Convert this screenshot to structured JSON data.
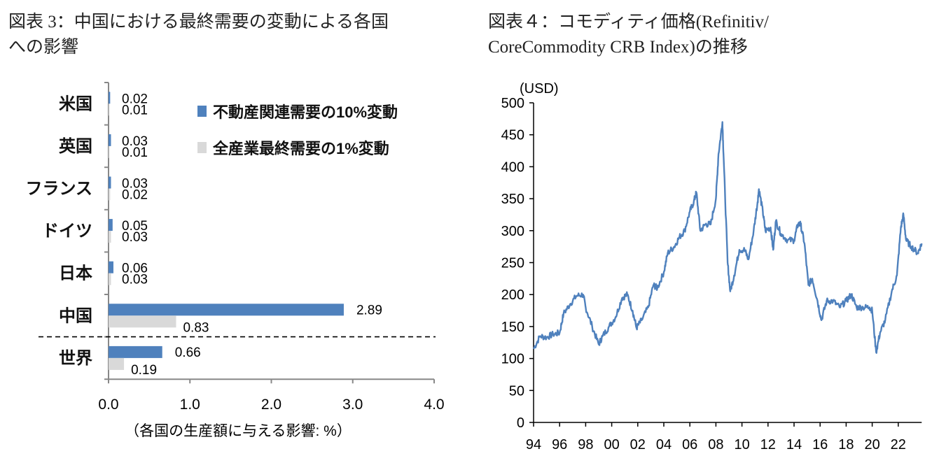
{
  "chart_data": [
    {
      "type": "bar",
      "orientation": "horizontal",
      "title_line1": "図表 3：中国における最終需要の変動による各国",
      "title_line2": "への影響",
      "categories": [
        "米国",
        "英国",
        "フランス",
        "ドイツ",
        "日本",
        "中国",
        "世界"
      ],
      "series": [
        {
          "name": "不動産関連需要の10%変動",
          "color": "#4F81BD",
          "values": [
            0.02,
            0.03,
            0.03,
            0.05,
            0.06,
            2.89,
            0.66
          ]
        },
        {
          "name": "全産業最終需要の1%変動",
          "color": "#D9D9D9",
          "values": [
            0.01,
            0.01,
            0.02,
            0.03,
            0.03,
            0.83,
            0.19
          ]
        }
      ],
      "xlabel": "（各国の生産額に与える影響: %）",
      "xlim": [
        0,
        4
      ],
      "xticks": [
        "0.0",
        "1.0",
        "2.0",
        "3.0",
        "4.0"
      ],
      "legend": "top-right",
      "grid": false
    },
    {
      "type": "line",
      "title_line1": "図表４：コモディティ価格(Refinitiv/",
      "title_line2": "CoreCommodity CRB Index)の推移",
      "ylabel": "(USD)",
      "ylim": [
        0,
        500
      ],
      "yticks": [
        "0",
        "50",
        "100",
        "150",
        "200",
        "250",
        "300",
        "350",
        "400",
        "450",
        "500"
      ],
      "xlim": [
        1994,
        2023.8
      ],
      "xticks": [
        "94",
        "96",
        "98",
        "00",
        "02",
        "04",
        "06",
        "08",
        "10",
        "12",
        "14",
        "16",
        "18",
        "20",
        "22"
      ],
      "color": "#4F81BD",
      "grid": false,
      "series": [
        {
          "x": [
            1994.0,
            1994.5,
            1995.0,
            1995.5,
            1996.0,
            1996.3,
            1996.8,
            1997.3,
            1997.8,
            1998.0,
            1998.5,
            1999.0,
            1999.3,
            1999.8,
            2000.3,
            2000.8,
            2001.2,
            2001.6,
            2001.9,
            2002.3,
            2002.8,
            2003.2,
            2003.5,
            2004.0,
            2004.3,
            2004.8,
            2005.2,
            2005.6,
            2006.0,
            2006.3,
            2006.5,
            2006.8,
            2007.2,
            2007.6,
            2008.0,
            2008.2,
            2008.5,
            2008.6,
            2008.9,
            2009.1,
            2009.4,
            2009.8,
            2010.2,
            2010.5,
            2010.9,
            2011.2,
            2011.3,
            2011.6,
            2011.8,
            2012.2,
            2012.4,
            2012.6,
            2013.0,
            2013.5,
            2014.0,
            2014.3,
            2014.5,
            2014.8,
            2015.1,
            2015.4,
            2015.8,
            2016.1,
            2016.5,
            2017.0,
            2017.5,
            2018.0,
            2018.4,
            2018.8,
            2019.3,
            2019.8,
            2020.0,
            2020.3,
            2020.6,
            2021.0,
            2021.5,
            2021.9,
            2022.2,
            2022.4,
            2022.6,
            2023.0,
            2023.5,
            2023.8
          ],
          "y": [
            115,
            135,
            133,
            138,
            140,
            170,
            185,
            198,
            200,
            180,
            150,
            122,
            135,
            150,
            165,
            195,
            200,
            175,
            148,
            160,
            180,
            215,
            210,
            235,
            265,
            275,
            290,
            300,
            330,
            345,
            360,
            300,
            310,
            310,
            350,
            420,
            470,
            410,
            250,
            205,
            230,
            270,
            270,
            255,
            300,
            345,
            365,
            330,
            300,
            305,
            270,
            315,
            295,
            285,
            285,
            310,
            310,
            280,
            215,
            225,
            190,
            160,
            190,
            190,
            180,
            190,
            200,
            180,
            180,
            180,
            175,
            110,
            140,
            160,
            205,
            230,
            305,
            325,
            285,
            275,
            265,
            280
          ]
        }
      ]
    }
  ]
}
